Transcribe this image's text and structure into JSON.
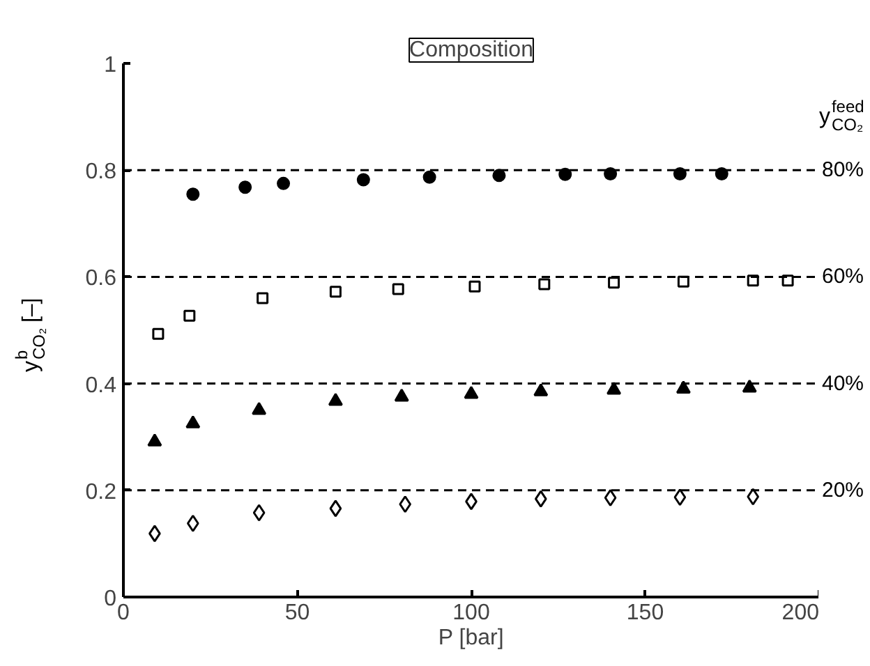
{
  "chart_data": {
    "type": "scatter",
    "title": "Composition",
    "xlabel": "P [bar]",
    "ylabel": "y$^{b}$$_{CO₂}$ [–]",
    "xlim": [
      0,
      200
    ],
    "ylim": [
      0,
      1
    ],
    "xticks": [
      0,
      50,
      100,
      150,
      200
    ],
    "yticks": [
      0,
      0.2,
      0.4,
      0.6,
      0.8,
      1
    ],
    "grid": false,
    "annotations": [
      "y$^{feed}$$_{CO₂}$"
    ],
    "ref_lines": [
      {
        "axis": "y",
        "value": 0.8,
        "label": "80%",
        "line_style": "dashed"
      },
      {
        "axis": "y",
        "value": 0.6,
        "label": "60%",
        "line_style": "dashed"
      },
      {
        "axis": "y",
        "value": 0.4,
        "label": "40%",
        "line_style": "dashed"
      },
      {
        "axis": "y",
        "value": 0.2,
        "label": "20%",
        "line_style": "dashed"
      }
    ],
    "series": [
      {
        "color": "#000000",
        "marker": "circle",
        "x": [
          20,
          35,
          46,
          69,
          88,
          108,
          127,
          140,
          160,
          172
        ],
        "values": [
          0.755,
          0.768,
          0.775,
          0.782,
          0.787,
          0.79,
          0.792,
          0.793,
          0.793,
          0.793
        ]
      },
      {
        "color": "#000000",
        "marker": "square",
        "x": [
          10,
          19,
          40,
          61,
          79,
          101,
          121,
          141,
          161,
          181,
          191
        ],
        "values": [
          0.493,
          0.527,
          0.56,
          0.572,
          0.577,
          0.582,
          0.586,
          0.589,
          0.591,
          0.593,
          0.593
        ]
      },
      {
        "color": "#000000",
        "marker": "triangle",
        "x": [
          9,
          20,
          39,
          61,
          80,
          100,
          120,
          141,
          161,
          180
        ],
        "values": [
          0.291,
          0.325,
          0.35,
          0.367,
          0.375,
          0.38,
          0.385,
          0.388,
          0.39,
          0.392
        ]
      },
      {
        "color": "#000000",
        "marker": "diamond",
        "x": [
          9,
          20,
          39,
          61,
          81,
          100,
          120,
          140,
          160,
          181
        ],
        "values": [
          0.119,
          0.138,
          0.158,
          0.166,
          0.174,
          0.179,
          0.184,
          0.186,
          0.187,
          0.188
        ]
      }
    ]
  }
}
